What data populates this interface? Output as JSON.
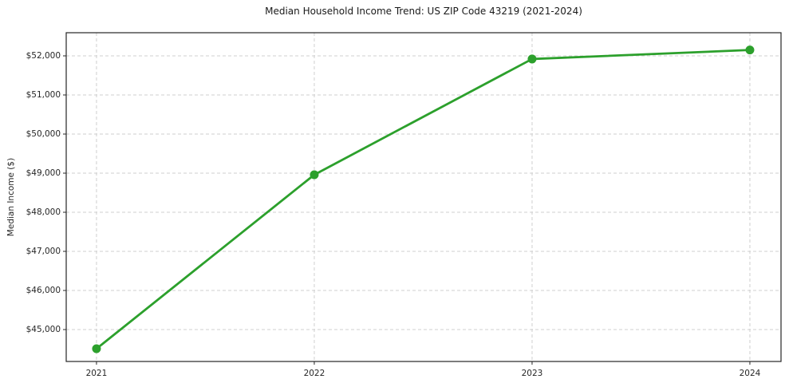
{
  "chart_data": {
    "type": "line",
    "title": "Median Household Income Trend: US ZIP Code 43219 (2021-2024)",
    "xlabel": "",
    "ylabel": "Median Income ($)",
    "x": [
      2021,
      2022,
      2023,
      2024
    ],
    "xtick_labels": [
      "2021",
      "2022",
      "2023",
      "2024"
    ],
    "series": [
      {
        "name": "Median Household Income",
        "values": [
          44510,
          48960,
          51920,
          52150
        ]
      }
    ],
    "yticks": [
      45000,
      46000,
      47000,
      48000,
      49000,
      50000,
      51000,
      52000
    ],
    "ytick_prefix": "$",
    "ylim": [
      44184,
      52592
    ],
    "xlim": [
      2020.861,
      2024.143
    ],
    "grid": true,
    "legend": "none",
    "colors": {
      "line": "#2ca02c",
      "marker": "#2ca02c",
      "grid": "#cfcfcf",
      "axis": "#262626",
      "text": "#262626",
      "background": "#ffffff"
    }
  }
}
